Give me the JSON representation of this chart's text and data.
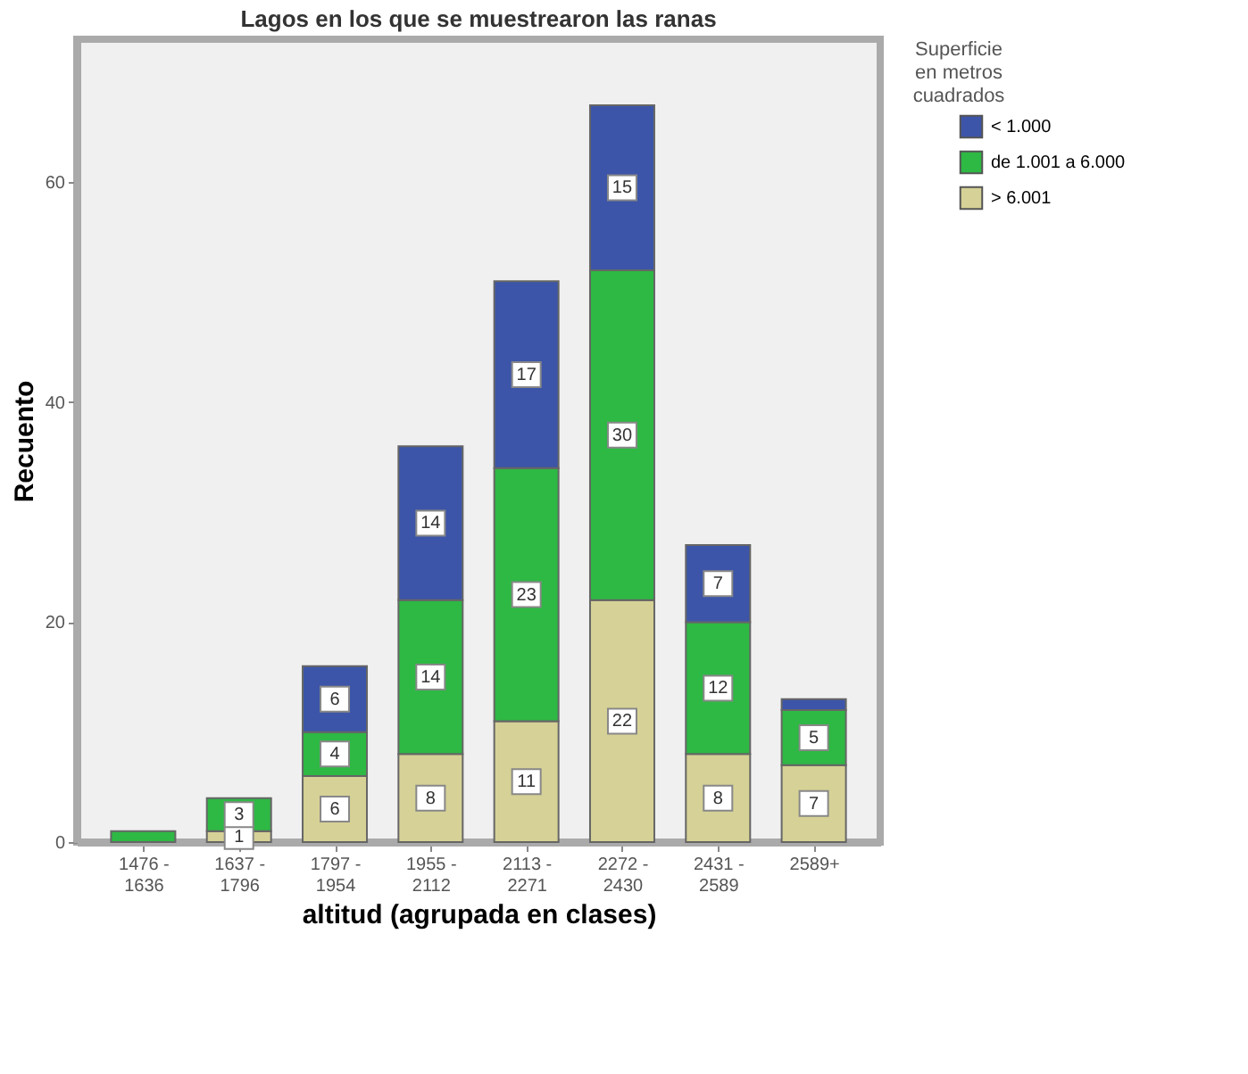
{
  "chart_data": {
    "type": "bar",
    "title": "Lagos en los que se muestrearon las ranas",
    "xlabel": "altitud (agrupada en clases)",
    "ylabel": "Recuento",
    "legend_title": "Superficie en metros cuadrados",
    "categories": [
      "1476 - 1636",
      "1637 - 1796",
      "1797 - 1954",
      "1955 - 2112",
      "2113 - 2271",
      "2272 - 2430",
      "2431 - 2589",
      "2589+"
    ],
    "stacked": true,
    "series": [
      {
        "name": "> 6.001",
        "color": "#d6d196",
        "values": [
          null,
          1,
          6,
          8,
          11,
          22,
          8,
          7
        ],
        "value_labels": [
          null,
          "1",
          "6",
          "8",
          "11",
          "22",
          "8",
          "7"
        ]
      },
      {
        "name": "de 1.001 a 6.000",
        "color": "#2eb844",
        "values": [
          1,
          3,
          4,
          14,
          23,
          30,
          12,
          5
        ],
        "value_labels": [
          null,
          "3",
          "4",
          "14",
          "23",
          "30",
          "12",
          "5"
        ]
      },
      {
        "name": "< 1.000",
        "color": "#3c55a8",
        "values": [
          null,
          null,
          6,
          14,
          17,
          15,
          7,
          1
        ],
        "value_labels": [
          null,
          null,
          "6",
          "14",
          "17",
          "15",
          "7",
          null
        ]
      }
    ],
    "ylim": [
      0,
      73
    ],
    "yticks": [
      0,
      20,
      40,
      60
    ],
    "grid": false,
    "legend": "top right"
  }
}
